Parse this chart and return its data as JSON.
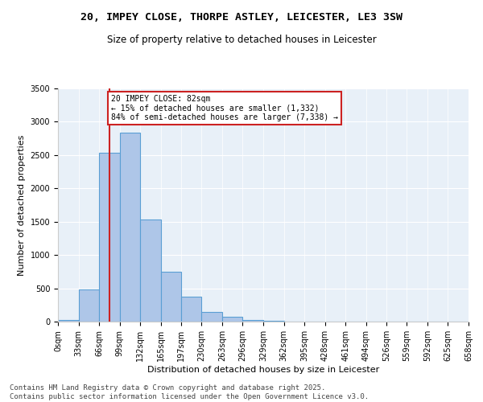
{
  "title1": "20, IMPEY CLOSE, THORPE ASTLEY, LEICESTER, LE3 3SW",
  "title2": "Size of property relative to detached houses in Leicester",
  "xlabel": "Distribution of detached houses by size in Leicester",
  "ylabel": "Number of detached properties",
  "bar_edges": [
    0,
    33,
    66,
    99,
    132,
    165,
    197,
    230,
    263,
    296,
    329,
    362,
    395,
    428,
    461,
    494,
    526,
    559,
    592,
    625,
    658
  ],
  "bar_heights": [
    20,
    480,
    2530,
    2840,
    1530,
    750,
    380,
    150,
    70,
    30,
    15,
    5,
    5,
    0,
    0,
    0,
    0,
    0,
    0,
    0
  ],
  "bar_color": "#aec6e8",
  "bar_edge_color": "#5a9fd4",
  "property_line_x": 82,
  "property_line_color": "#cc2222",
  "annotation_text": "20 IMPEY CLOSE: 82sqm\n← 15% of detached houses are smaller (1,332)\n84% of semi-detached houses are larger (7,338) →",
  "annotation_box_color": "#cc2222",
  "ylim": [
    0,
    3500
  ],
  "yticks": [
    0,
    500,
    1000,
    1500,
    2000,
    2500,
    3000,
    3500
  ],
  "tick_labels": [
    "0sqm",
    "33sqm",
    "66sqm",
    "99sqm",
    "132sqm",
    "165sqm",
    "197sqm",
    "230sqm",
    "263sqm",
    "296sqm",
    "329sqm",
    "362sqm",
    "395sqm",
    "428sqm",
    "461sqm",
    "494sqm",
    "526sqm",
    "559sqm",
    "592sqm",
    "625sqm",
    "658sqm"
  ],
  "bg_color": "#e8f0f8",
  "footnote": "Contains HM Land Registry data © Crown copyright and database right 2025.\nContains public sector information licensed under the Open Government Licence v3.0.",
  "title_fontsize": 9.5,
  "subtitle_fontsize": 8.5,
  "axis_label_fontsize": 8,
  "tick_fontsize": 7,
  "footnote_fontsize": 6.5
}
